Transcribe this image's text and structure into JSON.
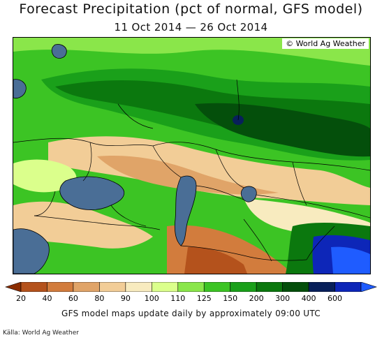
{
  "title": "Forecast Precipitation (pct of normal, GFS model)",
  "subtitle": "11 Oct 2014 — 26 Oct 2014",
  "copyright": "© World Ag Weather",
  "colorbar": {
    "bins": [
      {
        "color": "#8b2d00"
      },
      {
        "color": "#b4521c"
      },
      {
        "color": "#d27c3d"
      },
      {
        "color": "#e0a468"
      },
      {
        "color": "#f2cd97"
      },
      {
        "color": "#f8ebbf"
      },
      {
        "color": "#dbff8c"
      },
      {
        "color": "#8ae64a"
      },
      {
        "color": "#3cc424"
      },
      {
        "color": "#1aa01a"
      },
      {
        "color": "#0b780e"
      },
      {
        "color": "#044f0b"
      },
      {
        "color": "#08205a"
      },
      {
        "color": "#0d26b8"
      },
      {
        "color": "#1f5cff"
      }
    ],
    "ticks": [
      "20",
      "40",
      "60",
      "80",
      "90",
      "100",
      "110",
      "125",
      "150",
      "200",
      "300",
      "400",
      "600"
    ]
  },
  "footer_note": "GFS model maps update daily by approximately 09:00 UTC",
  "source": "Källa: World Ag Weather"
}
